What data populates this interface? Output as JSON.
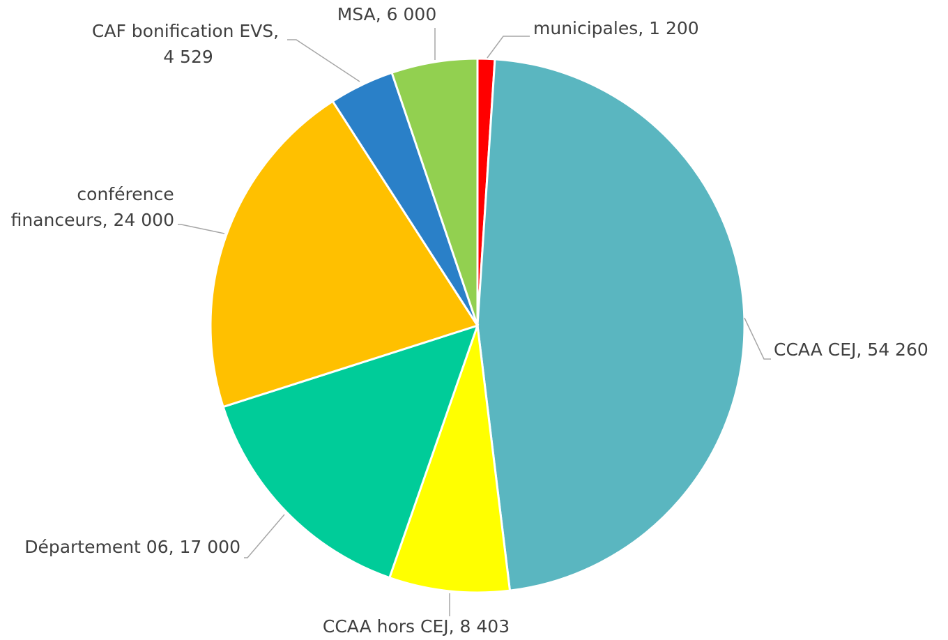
{
  "chart_data": {
    "type": "pie",
    "categories": [
      "municipales",
      "CCAA CEJ",
      "CCAA hors CEJ",
      "Département 06",
      "conférence financeurs",
      "CAF bonification EVS",
      "MSA"
    ],
    "values": [
      1200,
      54260,
      8403,
      17000,
      24000,
      4529,
      6000
    ],
    "value_labels": [
      "1 200",
      "54 260",
      "8 403",
      "17 000",
      "24 000",
      "4 529",
      "6 000"
    ],
    "separator": ", ",
    "colors": [
      "#ff0000",
      "#5ab6c0",
      "#ffff00",
      "#00cc99",
      "#ffc000",
      "#2a80c8",
      "#92d050"
    ]
  }
}
